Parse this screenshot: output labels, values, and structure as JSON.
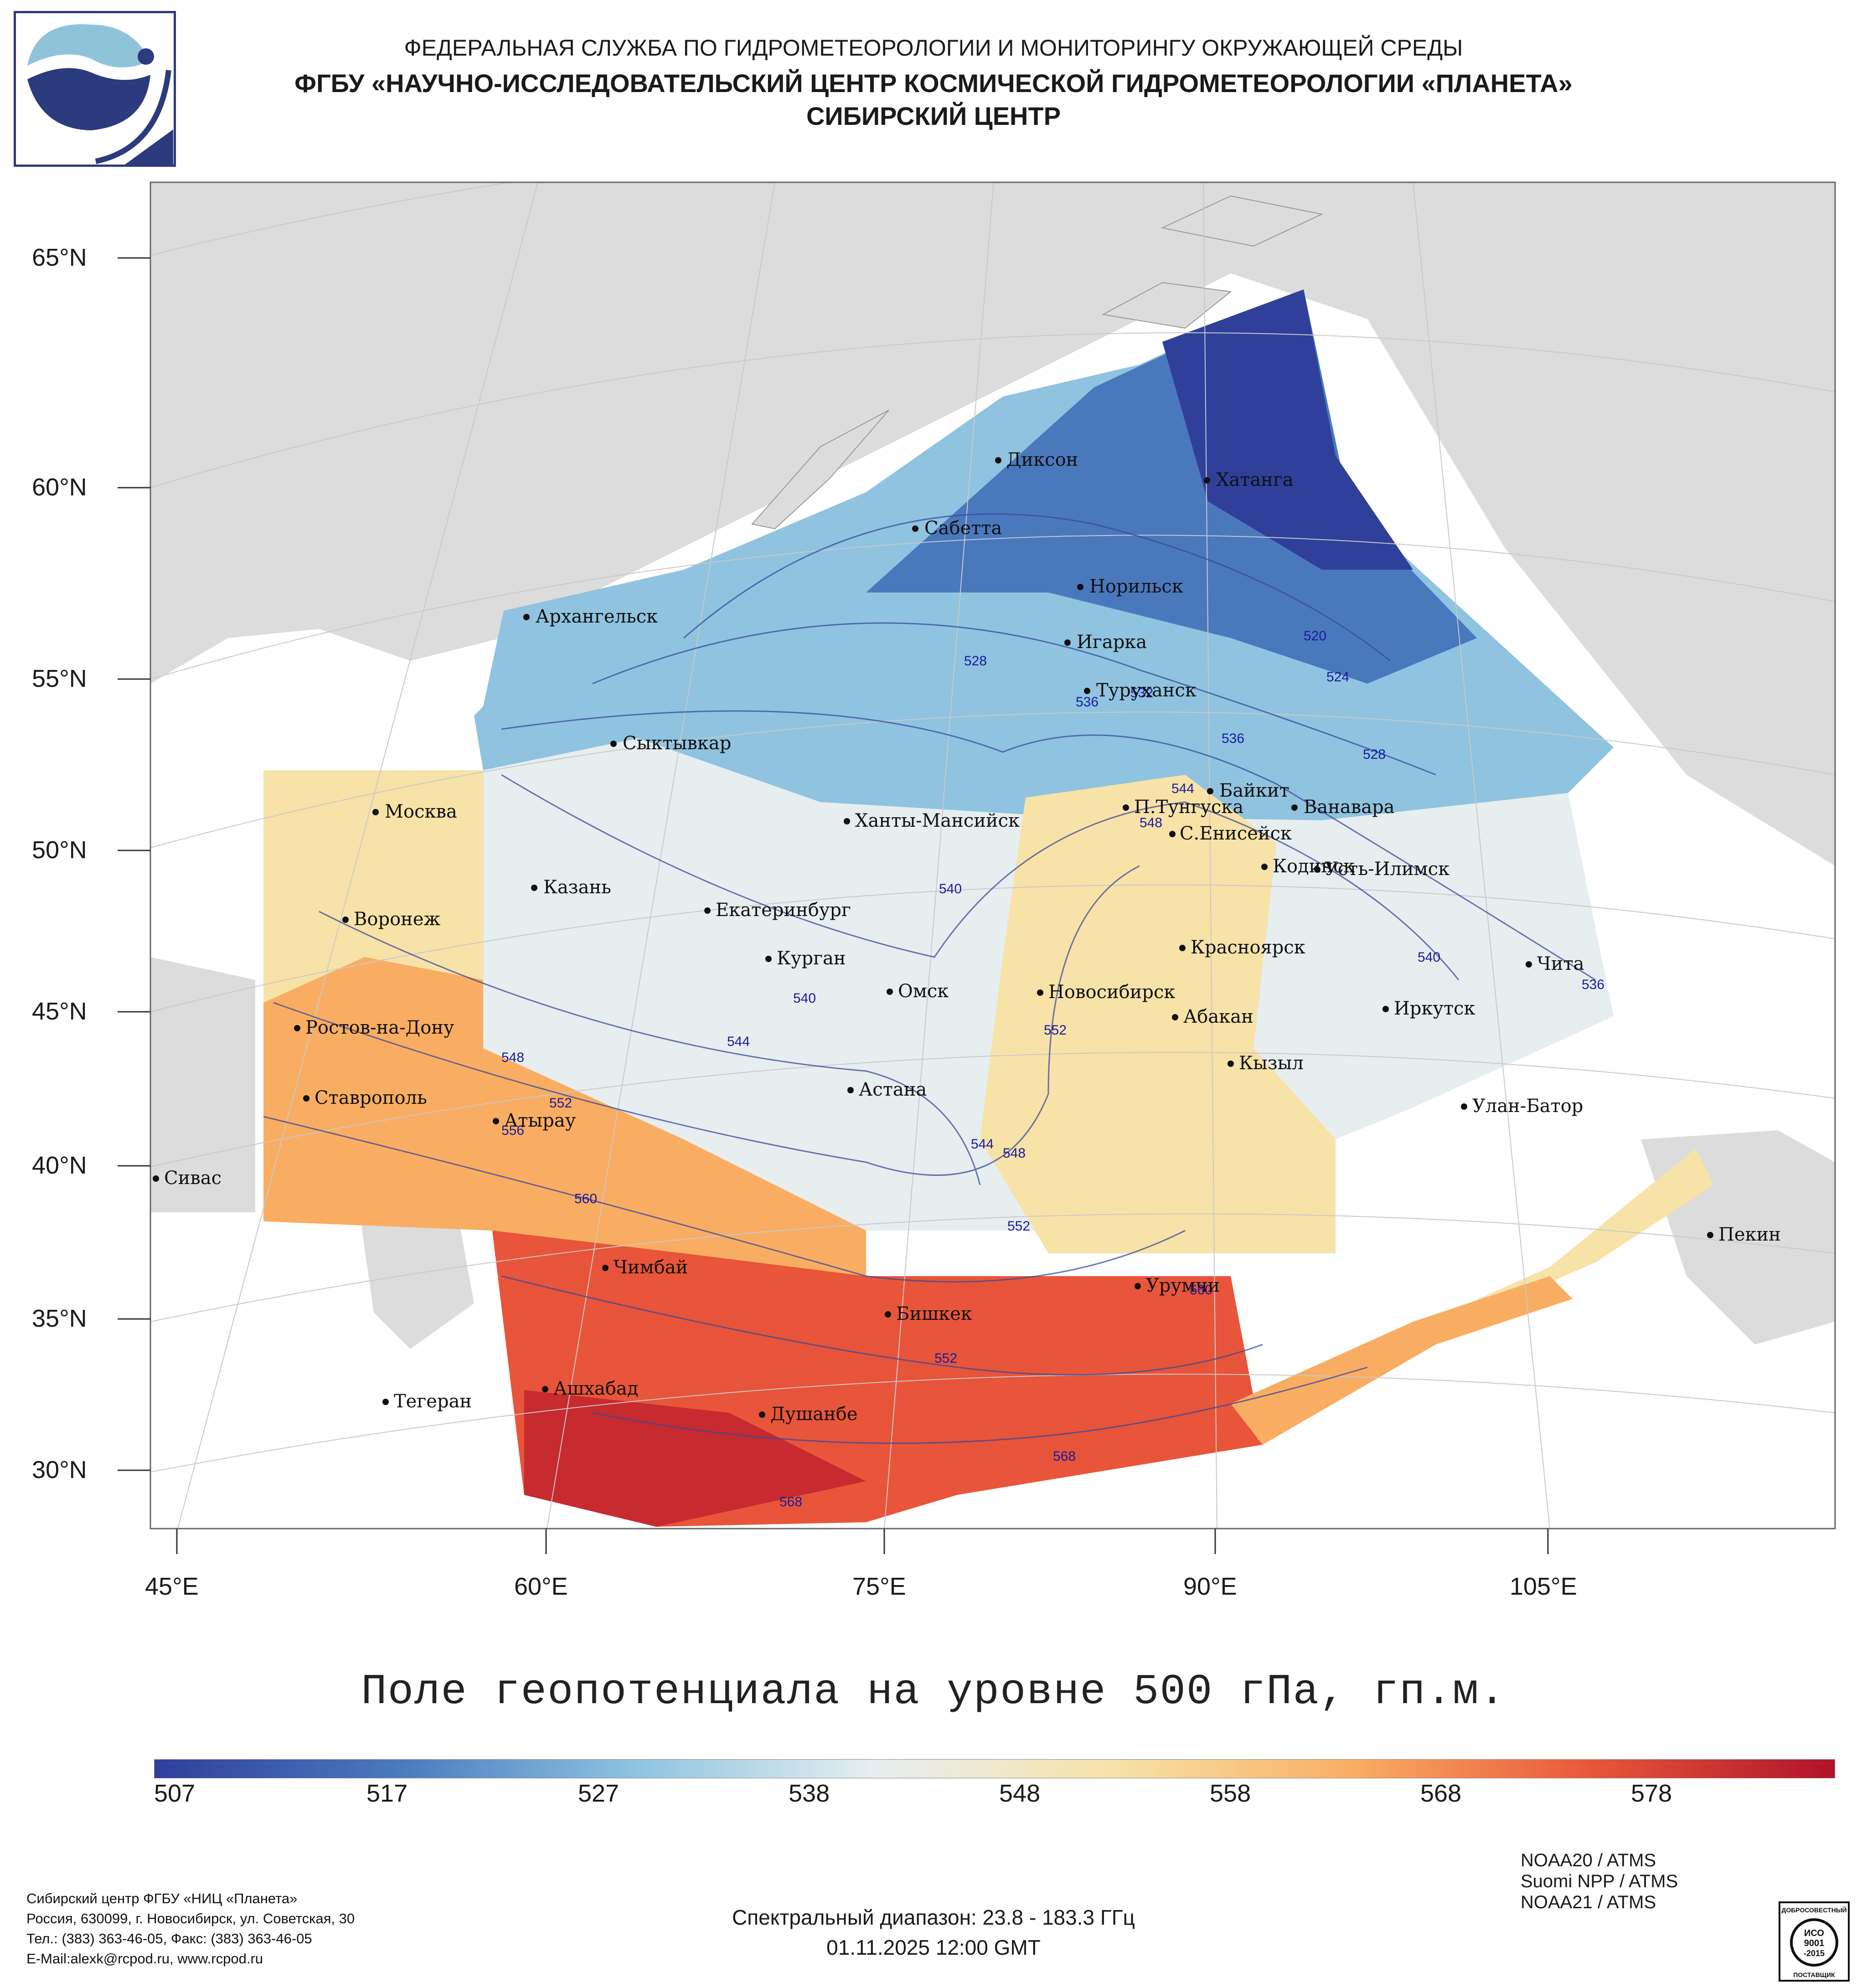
{
  "header": {
    "line1": "ФЕДЕРАЛЬНАЯ СЛУЖБА ПО ГИДРОМЕТЕОРОЛОГИИ И МОНИТОРИНГУ ОКРУЖАЮЩЕЙ СРЕДЫ",
    "line2": "ФГБУ «НАУЧНО-ИССЛЕДОВАТЕЛЬСКИЙ ЦЕНТР КОСМИЧЕСКОЙ ГИДРОМЕТЕОРОЛОГИИ «ПЛАНЕТА»",
    "line3": "СИБИРСКИЙ ЦЕНТР"
  },
  "map": {
    "lat_labels": [
      "65°N",
      "60°N",
      "55°N",
      "50°N",
      "45°N",
      "40°N",
      "35°N",
      "30°N"
    ],
    "lon_labels": [
      "45°E",
      "60°E",
      "75°E",
      "90°E",
      "105°E"
    ],
    "cities": [
      "Диксон",
      "Хатанга",
      "Сабетта",
      "Норильск",
      "Архангельск",
      "Игарка",
      "Туруханск",
      "Сыктывкар",
      "Байкит",
      "Москва",
      "П.Тунгуска",
      "Ванавара",
      "Ханты-Мансийск",
      "С.Енисейск",
      "Казань",
      "Кодинск",
      "Усть-Илимск",
      "Воронеж",
      "Екатеринбург",
      "Красноярск",
      "Курган",
      "Чита",
      "Омск",
      "Новосибирск",
      "Иркутск",
      "Ростов-на-Дону",
      "Абакан",
      "Кызыл",
      "Астана",
      "Ставрополь",
      "Улан-Батор",
      "Атырау",
      "Сивас",
      "Пекин",
      "Чимбай",
      "Урумчи",
      "Бишкек",
      "Ашхабад",
      "Тегеран",
      "Душанбе"
    ],
    "contour_labels": [
      "520",
      "524",
      "528",
      "528",
      "532",
      "536",
      "536",
      "536",
      "540",
      "540",
      "540",
      "544",
      "544",
      "544",
      "548",
      "548",
      "548",
      "552",
      "552",
      "552",
      "552",
      "556",
      "560",
      "560",
      "568",
      "568"
    ]
  },
  "title": "Поле геопотенциала на уровне 500 гПа, гп.м.",
  "colorbar": {
    "labels": [
      "507",
      "517",
      "527",
      "538",
      "548",
      "558",
      "568",
      "578"
    ],
    "colors": [
      "#2f3f9a",
      "#4a78bd",
      "#8fc3e0",
      "#e6eef0",
      "#f7e2a8",
      "#f9ad62",
      "#e8553a",
      "#b0122a"
    ]
  },
  "footer": {
    "org": "Сибирский центр ФГБУ «НИЦ «Планета»",
    "address": "Россия, 630099, г. Новосибирск, ул. Советская, 30",
    "phones": "Тел.: (383) 363-46-05, Факс: (383) 363-46-05",
    "email": "E-Mail:alexk@rcpod.ru, www.rcpod.ru",
    "spectral": "Спектральный диапазон: 23.8 - 183.3 ГГц",
    "datetime": "01.11.2025 12:00 GMT",
    "satellites": [
      "NOAA20 / ATMS",
      "Suomi NPP / ATMS",
      "NOAA21 / ATMS"
    ]
  },
  "cert": {
    "top": "ДОБРОСОВЕСТНЫЙ",
    "iso1": "ИСО",
    "iso2": "9001",
    "iso3": "-2015",
    "bottom": "ПОСТАВЩИК"
  }
}
